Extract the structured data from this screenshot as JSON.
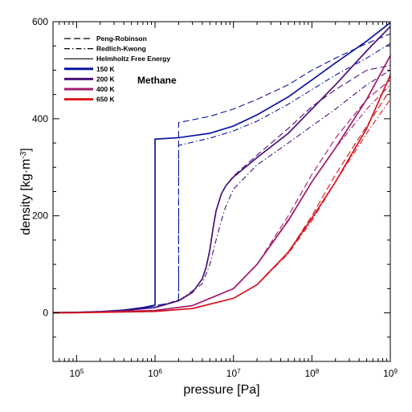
{
  "chart_data": {
    "type": "line",
    "xlabel": "pressure [Pa]",
    "ylabel": "density [kg·m",
    "ylabel_sup": "-3",
    "ylabel_close": "]",
    "xscale": "log",
    "xlim": [
      50000,
      1000000000
    ],
    "ylim": [
      -100,
      600
    ],
    "xticks": [
      {
        "value": 100000,
        "base": "10",
        "exp": "5"
      },
      {
        "value": 1000000,
        "base": "10",
        "exp": "6"
      },
      {
        "value": 10000000,
        "base": "10",
        "exp": "7"
      },
      {
        "value": 100000000,
        "base": "10",
        "exp": "8"
      },
      {
        "value": 1000000000,
        "base": "10",
        "exp": "9"
      }
    ],
    "yticks": [
      {
        "value": 0,
        "label": "0"
      },
      {
        "value": 200,
        "label": "200"
      },
      {
        "value": 400,
        "label": "400"
      },
      {
        "value": 600,
        "label": "600"
      }
    ],
    "annotation": "Methane",
    "legend_placement": "top-left",
    "legend": [
      {
        "label": "Peng-Robinson",
        "style": "dashed",
        "color": "#000000"
      },
      {
        "label": "Redlich-Kwong",
        "style": "dashdot",
        "color": "#000000"
      },
      {
        "label": "Helmholtz Free Energy",
        "style": "solid",
        "color": "#000000"
      },
      {
        "label": "150 K",
        "style": "solid-thick",
        "color": "#0a14a0"
      },
      {
        "label": "200 K",
        "style": "solid-thick",
        "color": "#4a1075"
      },
      {
        "label": "400 K",
        "style": "solid-thick",
        "color": "#a01a6a"
      },
      {
        "label": "650 K",
        "style": "solid-thick",
        "color": "#d8141e"
      }
    ],
    "series": [
      {
        "temperature": "150 K",
        "model": "Helmholtz Free Energy",
        "color": "#0a14a0",
        "style": "solid",
        "x": [
          50000,
          100000,
          200000,
          400000,
          700000,
          1000000,
          1000000,
          2000000,
          5000000,
          10000000,
          20000000,
          50000000,
          100000000,
          200000000,
          500000000,
          1000000000
        ],
        "y": [
          0.6,
          1.3,
          2.7,
          5.8,
          11,
          16,
          358,
          361,
          370,
          385,
          408,
          445,
          480,
          515,
          560,
          598
        ]
      },
      {
        "temperature": "150 K",
        "model": "Peng-Robinson",
        "color": "#0a14a0",
        "style": "dashed",
        "x": [
          50000,
          100000,
          300000,
          700000,
          1500000,
          2000000,
          2000000,
          5000000,
          10000000,
          20000000,
          50000000,
          100000000,
          200000000,
          500000000,
          1000000000
        ],
        "y": [
          0.6,
          1.3,
          4,
          10,
          20,
          27,
          392,
          405,
          420,
          440,
          470,
          500,
          525,
          555,
          575
        ]
      },
      {
        "temperature": "150 K",
        "model": "Redlich-Kwong",
        "color": "#0a14a0",
        "style": "dashdot",
        "x": [
          50000,
          100000,
          300000,
          700000,
          1500000,
          2000000,
          2000000,
          5000000,
          10000000,
          20000000,
          50000000,
          100000000,
          200000000,
          500000000,
          1000000000
        ],
        "y": [
          0.6,
          1.3,
          4,
          10,
          20,
          26,
          345,
          360,
          375,
          395,
          430,
          460,
          490,
          525,
          555
        ]
      },
      {
        "temperature": "200 K",
        "model": "Helmholtz Free Energy",
        "color": "#4a1075",
        "style": "solid",
        "x": [
          50000,
          100000,
          300000,
          1000000,
          2000000,
          3000000,
          4000000,
          4500000,
          5000000,
          5500000,
          6000000,
          7000000,
          8000000,
          10000000,
          20000000,
          50000000,
          100000000,
          200000000,
          500000000,
          1000000000
        ],
        "y": [
          0.5,
          1,
          3,
          11,
          25,
          42,
          70,
          95,
          130,
          175,
          210,
          245,
          262,
          280,
          320,
          370,
          420,
          470,
          540,
          590
        ]
      },
      {
        "temperature": "200 K",
        "model": "Peng-Robinson",
        "color": "#4a1075",
        "style": "dashed",
        "x": [
          50000,
          100000,
          300000,
          1000000,
          2000000,
          3000000,
          4000000,
          4500000,
          5000000,
          5500000,
          6000000,
          7000000,
          8000000,
          10000000,
          20000000,
          50000000,
          100000000,
          200000000,
          500000000,
          1000000000
        ],
        "y": [
          0.5,
          1,
          3,
          11,
          25,
          42,
          70,
          95,
          130,
          175,
          210,
          245,
          262,
          282,
          325,
          380,
          425,
          460,
          500,
          510
        ]
      },
      {
        "temperature": "200 K",
        "model": "Redlich-Kwong",
        "color": "#4a1075",
        "style": "dashdot",
        "x": [
          50000,
          100000,
          300000,
          1000000,
          2000000,
          4000000,
          5000000,
          6000000,
          7000000,
          8000000,
          10000000,
          20000000,
          50000000,
          100000000,
          200000000,
          500000000,
          1000000000
        ],
        "y": [
          0.5,
          1,
          3,
          11,
          25,
          60,
          100,
          150,
          190,
          220,
          255,
          305,
          350,
          385,
          420,
          470,
          500
        ]
      },
      {
        "temperature": "400 K",
        "model": "Helmholtz Free Energy",
        "color": "#a01a6a",
        "style": "solid",
        "x": [
          50000,
          100000,
          1000000,
          3000000,
          10000000,
          20000000,
          50000000,
          100000000,
          200000000,
          500000000,
          1000000000
        ],
        "y": [
          0.2,
          0.5,
          5,
          15,
          50,
          100,
          190,
          270,
          340,
          440,
          530
        ]
      },
      {
        "temperature": "400 K",
        "model": "Peng-Robinson",
        "color": "#a01a6a",
        "style": "dashed",
        "x": [
          50000,
          100000,
          1000000,
          3000000,
          10000000,
          20000000,
          50000000,
          100000000,
          200000000,
          500000000,
          1000000000
        ],
        "y": [
          0.2,
          0.5,
          5,
          15,
          50,
          100,
          200,
          285,
          360,
          440,
          480
        ]
      },
      {
        "temperature": "400 K",
        "model": "Redlich-Kwong",
        "color": "#a01a6a",
        "style": "dashdot",
        "x": [
          50000,
          100000,
          1000000,
          3000000,
          10000000,
          20000000,
          50000000,
          100000000,
          200000000,
          500000000,
          1000000000
        ],
        "y": [
          0.2,
          0.5,
          5,
          15,
          50,
          100,
          192,
          270,
          340,
          420,
          470
        ]
      },
      {
        "temperature": "650 K",
        "model": "Helmholtz Free Energy",
        "color": "#d8141e",
        "style": "solid",
        "x": [
          50000,
          100000,
          1000000,
          3000000,
          10000000,
          20000000,
          50000000,
          100000000,
          200000000,
          500000000,
          1000000000
        ],
        "y": [
          0.15,
          0.3,
          3,
          9,
          30,
          58,
          125,
          195,
          270,
          380,
          490
        ]
      },
      {
        "temperature": "650 K",
        "model": "Peng-Robinson",
        "color": "#d8141e",
        "style": "dashed",
        "x": [
          50000,
          100000,
          1000000,
          3000000,
          10000000,
          20000000,
          50000000,
          100000000,
          200000000,
          500000000,
          1000000000
        ],
        "y": [
          0.15,
          0.3,
          3,
          9,
          30,
          58,
          125,
          200,
          285,
          385,
          460
        ]
      },
      {
        "temperature": "650 K",
        "model": "Redlich-Kwong",
        "color": "#d8141e",
        "style": "dashdot",
        "x": [
          50000,
          100000,
          1000000,
          3000000,
          10000000,
          20000000,
          50000000,
          100000000,
          200000000,
          500000000,
          1000000000
        ],
        "y": [
          0.15,
          0.3,
          3,
          9,
          30,
          58,
          122,
          190,
          270,
          370,
          440
        ]
      }
    ]
  }
}
